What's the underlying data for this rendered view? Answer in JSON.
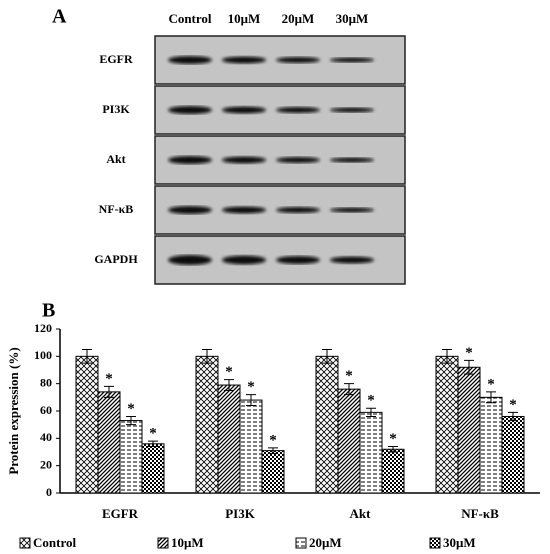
{
  "panel_a": {
    "label": "A",
    "columns": [
      "Control",
      "10μM",
      "20μM",
      "30μM"
    ],
    "rows": [
      "EGFR",
      "PI3K",
      "Akt",
      "NF-κB",
      "GAPDH"
    ]
  },
  "chart_data": {
    "type": "bar",
    "panel_label": "B",
    "y_label": "Protein expression (%)",
    "categories": [
      "EGFR",
      "PI3K",
      "Akt",
      "NF-κB"
    ],
    "series": [
      {
        "name": "Control",
        "color": "#000000",
        "values": [
          100,
          100,
          100,
          100
        ],
        "errors": [
          5,
          5,
          5,
          5
        ]
      },
      {
        "name": "10μM",
        "color": "#000000",
        "values": [
          74,
          79,
          76,
          92
        ],
        "errors": [
          4,
          4,
          4,
          5
        ]
      },
      {
        "name": "20μM",
        "color": "#000000",
        "values": [
          53,
          68,
          59,
          70
        ],
        "errors": [
          3,
          4,
          3,
          4
        ]
      },
      {
        "name": "30μM",
        "color": "#000000",
        "values": [
          36,
          31,
          32,
          56
        ],
        "errors": [
          2,
          2,
          2,
          3
        ]
      }
    ],
    "significance_marker": "*",
    "ylim": [
      0,
      120
    ],
    "yticks": [
      0,
      20,
      40,
      60,
      80,
      100,
      120
    ]
  }
}
